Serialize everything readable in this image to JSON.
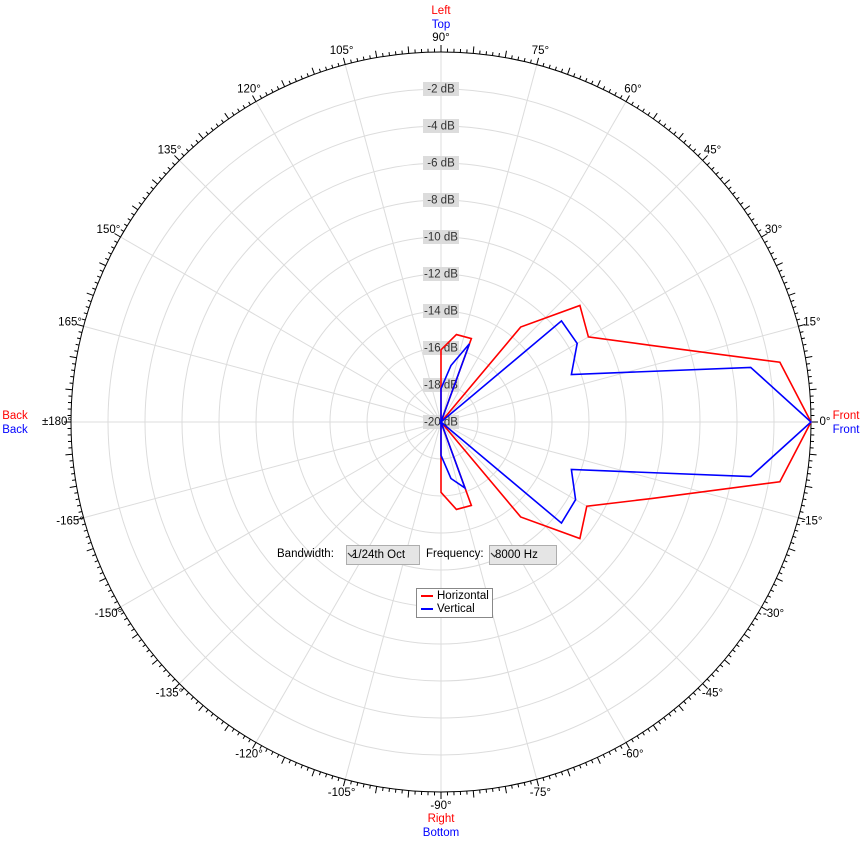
{
  "chart_data": {
    "type": "polar",
    "x": [
      0,
      10,
      20,
      30,
      40,
      50,
      60,
      70,
      80,
      90,
      100,
      110,
      120,
      130,
      140,
      150,
      160,
      170,
      180,
      190,
      200,
      210,
      220,
      230,
      240,
      250,
      260,
      270,
      280,
      290,
      300,
      310,
      320,
      330,
      340,
      350
    ],
    "series": [
      {
        "name": "Horizontal",
        "color": "#ff0000",
        "values": [
          0,
          -1.4,
          -7.9,
          -10.8,
          -10.2,
          -13.3,
          -20,
          -15.2,
          -15.2,
          -16.1,
          -20,
          -20,
          -20,
          -20,
          -20,
          -20,
          -20,
          -20,
          -20,
          -20,
          -20,
          -20,
          -20,
          -20,
          -20,
          -20,
          -20,
          -16.2,
          -15.2,
          -15.2,
          -20,
          -13.3,
          -10.2,
          -10.9,
          -7.9,
          -1.4
        ]
      },
      {
        "name": "Vertical",
        "color": "#0000ff",
        "values": [
          0,
          -3.0,
          -12.5,
          -11.5,
          -11.5,
          -20,
          -20,
          -15.5,
          -16.9,
          -18.2,
          -20,
          -20,
          -20,
          -20,
          -20,
          -20,
          -20,
          -20,
          -20,
          -20,
          -20,
          -20,
          -20,
          -20,
          -20,
          -20,
          -20,
          -18.2,
          -16.9,
          -16.2,
          -20,
          -20,
          -11.5,
          -11.6,
          -12.5,
          -3.0
        ]
      }
    ],
    "rlim": [
      -20,
      0
    ],
    "rticks": [
      {
        "value": -20,
        "label": "-20 dB"
      },
      {
        "value": -18,
        "label": "-18 dB"
      },
      {
        "value": -16,
        "label": "-16 dB"
      },
      {
        "value": -14,
        "label": "-14 dB"
      },
      {
        "value": -12,
        "label": "-12 dB"
      },
      {
        "value": -10,
        "label": "-10 dB"
      },
      {
        "value": -8,
        "label": "-8 dB"
      },
      {
        "value": -6,
        "label": "-6 dB"
      },
      {
        "value": -4,
        "label": "-4 dB"
      },
      {
        "value": -2,
        "label": "-2 dB"
      }
    ],
    "thetaticks": [
      {
        "value": 0,
        "label": "0°"
      },
      {
        "value": 15,
        "label": "15°"
      },
      {
        "value": 30,
        "label": "30°"
      },
      {
        "value": 45,
        "label": "45°"
      },
      {
        "value": 60,
        "label": "60°"
      },
      {
        "value": 75,
        "label": "75°"
      },
      {
        "value": 90,
        "label": "90°"
      },
      {
        "value": 105,
        "label": "105°"
      },
      {
        "value": 120,
        "label": "120°"
      },
      {
        "value": 135,
        "label": "135°"
      },
      {
        "value": 150,
        "label": "150°"
      },
      {
        "value": 165,
        "label": "165°"
      },
      {
        "value": 180,
        "label": "±180°"
      },
      {
        "value": -165,
        "label": "-165°"
      },
      {
        "value": -150,
        "label": "-150°"
      },
      {
        "value": -135,
        "label": "-135°"
      },
      {
        "value": -120,
        "label": "-120°"
      },
      {
        "value": -105,
        "label": "-105°"
      },
      {
        "value": -90,
        "label": "-90°"
      },
      {
        "value": -75,
        "label": "-75°"
      },
      {
        "value": -60,
        "label": "-60°"
      },
      {
        "value": -45,
        "label": "-45°"
      },
      {
        "value": -30,
        "label": "-30°"
      },
      {
        "value": -15,
        "label": "-15°"
      }
    ],
    "grid": true
  },
  "direction_labels": {
    "top": [
      "Left",
      "Top"
    ],
    "bottom": [
      "Right",
      "Bottom"
    ],
    "left": [
      "Back",
      "Back"
    ],
    "right": [
      "Front",
      "Front"
    ]
  },
  "controls": {
    "bandwidth_label": "Bandwidth:",
    "bandwidth": "1/24th Oct",
    "frequency_label": "Frequency:",
    "frequency": "8000 Hz"
  }
}
